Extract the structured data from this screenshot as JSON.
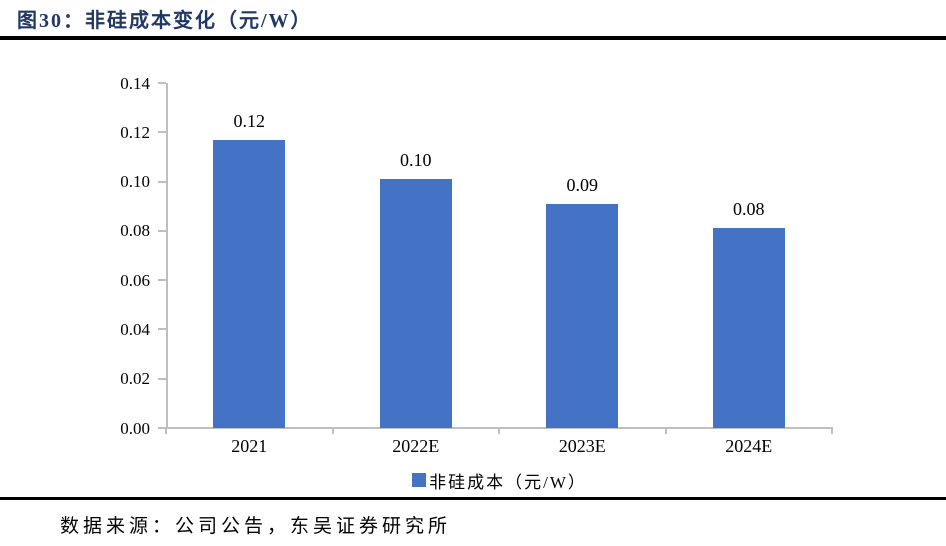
{
  "page": {
    "title": "图30：非硅成本变化（元/W）",
    "source_note": "数据来源：公司公告，东吴证券研究所"
  },
  "colors": {
    "title_text": "#1F3864",
    "rule": "#000000",
    "bar": "#4472C4",
    "axis": "#BFBFBF",
    "chart_text": "#000000"
  },
  "chart_data": {
    "type": "bar",
    "title": "非硅成本变化（元/W）",
    "categories": [
      "2021",
      "2022E",
      "2023E",
      "2024E"
    ],
    "values": [
      0.117,
      0.101,
      0.091,
      0.081
    ],
    "value_labels": [
      "0.12",
      "0.10",
      "0.09",
      "0.08"
    ],
    "series_name": "非硅成本（元/W）",
    "legend": {
      "position": "bottom",
      "label": "非硅成本（元/W）"
    },
    "xlabel": "",
    "ylabel": "",
    "ylim": [
      0,
      0.14
    ],
    "ytick_step": 0.02,
    "ytick_labels": [
      "0.00",
      "0.02",
      "0.04",
      "0.06",
      "0.08",
      "0.10",
      "0.12",
      "0.14"
    ],
    "grid": false,
    "bar_color": "#4472C4",
    "axis_color": "#BFBFBF"
  }
}
